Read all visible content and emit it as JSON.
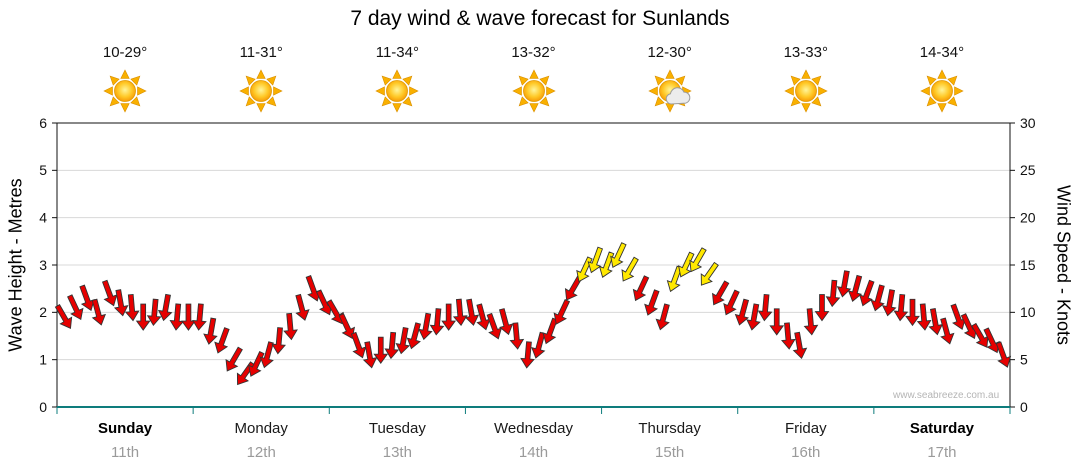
{
  "title": "7 day wind & wave forecast for Sunlands",
  "watermark": "www.seabreeze.com.au",
  "days": [
    {
      "name": "Sunday",
      "date": "11th",
      "temp": "10-29°",
      "icon": "sunny",
      "bold": true
    },
    {
      "name": "Monday",
      "date": "12th",
      "temp": "11-31°",
      "icon": "sunny",
      "bold": false
    },
    {
      "name": "Tuesday",
      "date": "13th",
      "temp": "11-34°",
      "icon": "sunny",
      "bold": false
    },
    {
      "name": "Wednesday",
      "date": "14th",
      "temp": "13-32°",
      "icon": "sunny",
      "bold": false
    },
    {
      "name": "Thursday",
      "date": "15th",
      "temp": "12-30°",
      "icon": "partly-cloudy",
      "bold": false
    },
    {
      "name": "Friday",
      "date": "16th",
      "temp": "13-33°",
      "icon": "sunny",
      "bold": false
    },
    {
      "name": "Saturday",
      "date": "17th",
      "temp": "14-34°",
      "icon": "sunny",
      "bold": true
    }
  ],
  "chart_data": {
    "type": "wind-arrows",
    "title": "7 day wind & wave forecast for Sunlands",
    "categories": [
      "Sunday 11th",
      "Monday 12th",
      "Tuesday 13th",
      "Wednesday 14th",
      "Thursday 15th",
      "Friday 16th",
      "Saturday 17th"
    ],
    "left_axis": {
      "label": "Wave Height - Metres",
      "ticks": [
        0,
        1,
        2,
        3,
        4,
        5,
        6
      ],
      "ylim": [
        0,
        6
      ]
    },
    "right_axis": {
      "label": "Wind Speed - Knots",
      "ticks": [
        0,
        5,
        10,
        15,
        20,
        25,
        30
      ],
      "ylim": [
        0,
        30
      ]
    },
    "points_per_day": 12,
    "knots": [
      9.5,
      10.5,
      11.5,
      10,
      12,
      11,
      10.5,
      9.5,
      10,
      10.5,
      9.5,
      9.5,
      9.5,
      8,
      7,
      5,
      3.5,
      4.5,
      5.5,
      7,
      8.5,
      10.5,
      12.5,
      11,
      10,
      8.5,
      6.5,
      5.5,
      6,
      6.5,
      7,
      7.5,
      8.5,
      9,
      9.5,
      10,
      10,
      9.5,
      8.5,
      9,
      7.5,
      5.5,
      6.5,
      8,
      10,
      12.5,
      14.5,
      15.5,
      15,
      16,
      14.5,
      12.5,
      11,
      9.5,
      13.5,
      15,
      15.5,
      14,
      12,
      11,
      10,
      9.5,
      10.5,
      9,
      7.5,
      6.5,
      9,
      10.5,
      12,
      13,
      12.5,
      12,
      11.5,
      11,
      10.5,
      10,
      9.5,
      9,
      8,
      9.5,
      8.5,
      7.5,
      7,
      5.5
    ],
    "dirs_deg": [
      150,
      155,
      160,
      165,
      160,
      170,
      175,
      180,
      185,
      190,
      185,
      180,
      185,
      190,
      200,
      210,
      215,
      205,
      195,
      185,
      175,
      165,
      160,
      155,
      150,
      155,
      160,
      170,
      180,
      185,
      190,
      195,
      190,
      185,
      180,
      175,
      170,
      165,
      160,
      165,
      175,
      185,
      195,
      200,
      205,
      210,
      205,
      200,
      200,
      205,
      210,
      205,
      200,
      195,
      200,
      205,
      210,
      215,
      210,
      205,
      195,
      190,
      185,
      180,
      175,
      170,
      175,
      180,
      185,
      190,
      195,
      200,
      195,
      190,
      185,
      180,
      175,
      170,
      165,
      160,
      155,
      150,
      155,
      160
    ],
    "colors": {
      "arrow_low": "#e60000",
      "arrow_high": "#ffe800",
      "high_threshold_knots": 13.5,
      "grid": "#d8d8d8",
      "frame": "#111111",
      "bottom_axis": "#0e7c7c"
    }
  }
}
